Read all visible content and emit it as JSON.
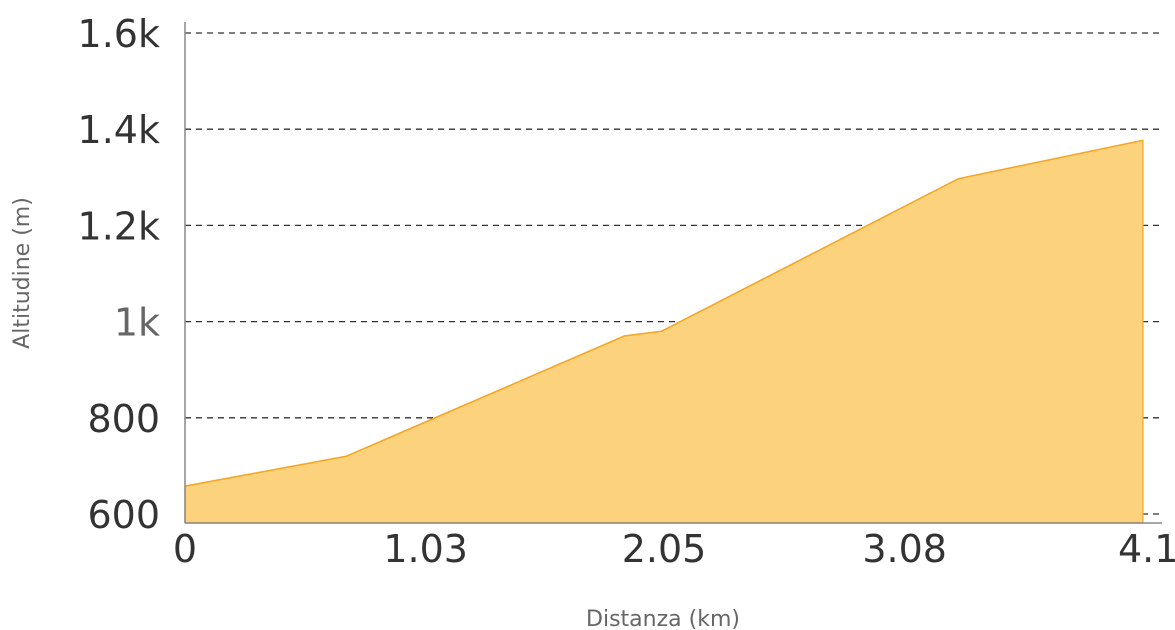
{
  "chart_data": {
    "type": "area",
    "xlabel": "Distanza (km)",
    "ylabel": "Altitudine (m)",
    "x_ticks": [
      "0",
      "1.03",
      "2.05",
      "3.08",
      "4.1"
    ],
    "x_tick_values": [
      0,
      1.03,
      2.05,
      3.08,
      4.1
    ],
    "y_ticks": [
      "600",
      "800",
      "1k",
      "1.2k",
      "1.4k",
      "1.6k"
    ],
    "y_tick_values": [
      600,
      800,
      1000,
      1200,
      1400,
      1600
    ],
    "xlim": [
      0,
      4.1
    ],
    "ylim": [
      580,
      1620
    ],
    "grid": "horizontal dashed",
    "fill_color": "#fdd27c",
    "line_color": "#f5a623",
    "series": [
      {
        "x": [
          0,
          0.69,
          1.88,
          2.04,
          3.31,
          4.1
        ],
        "y": [
          658,
          720,
          970,
          980,
          1297,
          1377
        ]
      }
    ]
  }
}
